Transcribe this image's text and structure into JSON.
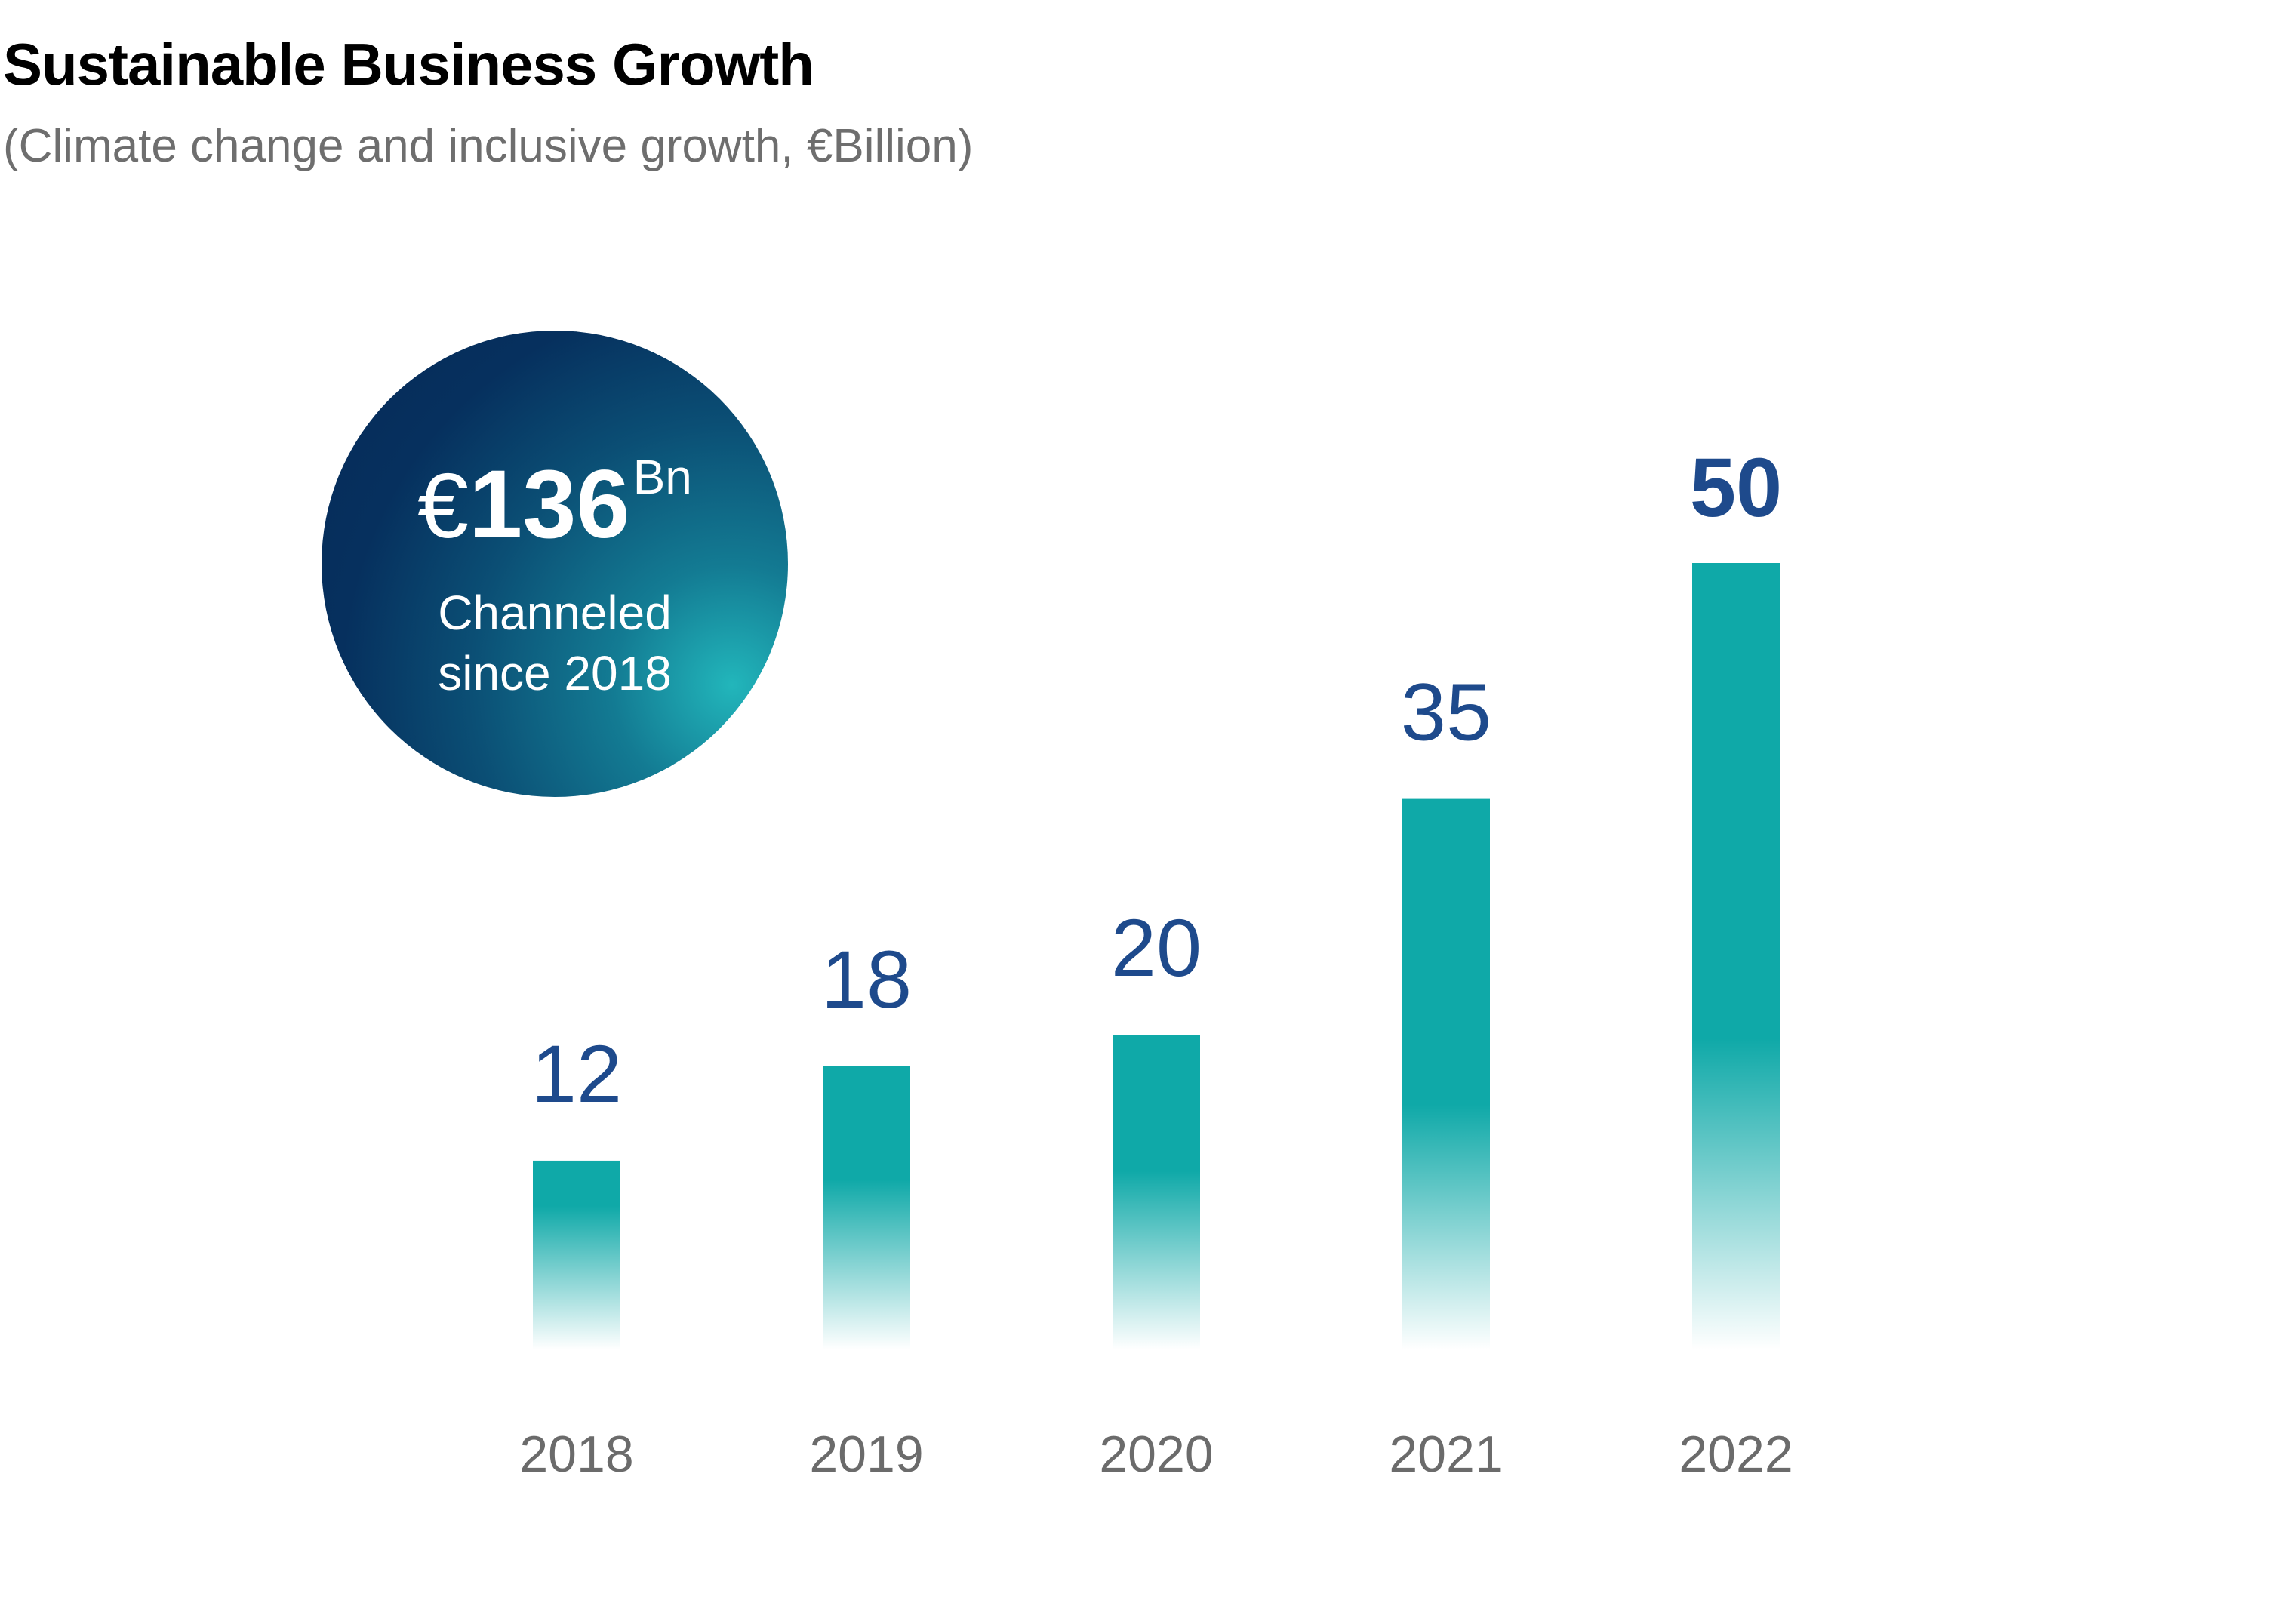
{
  "title": "Sustainable Business Growth",
  "subtitle": "(Climate change and inclusive growth, €Billion)",
  "badge": {
    "currency": "€",
    "value": "136",
    "unit": "Bn",
    "caption_line1": "Channeled",
    "caption_line2": "since 2018"
  },
  "colors": {
    "bar": "#0fa9a8",
    "value_label": "#1e4a8c",
    "axis_label": "#6b6b6b"
  },
  "chart_data": {
    "type": "bar",
    "title": "Sustainable Business Growth",
    "subtitle": "(Climate change and inclusive growth, €Billion)",
    "categories": [
      "2018",
      "2019",
      "2020",
      "2021",
      "2022"
    ],
    "values": [
      12,
      18,
      20,
      35,
      50
    ],
    "data_labels": [
      "12",
      "18",
      "20",
      "35",
      "50"
    ],
    "highlight_index": 4,
    "ylim": [
      0,
      50
    ],
    "grid": false,
    "legend": "none"
  }
}
